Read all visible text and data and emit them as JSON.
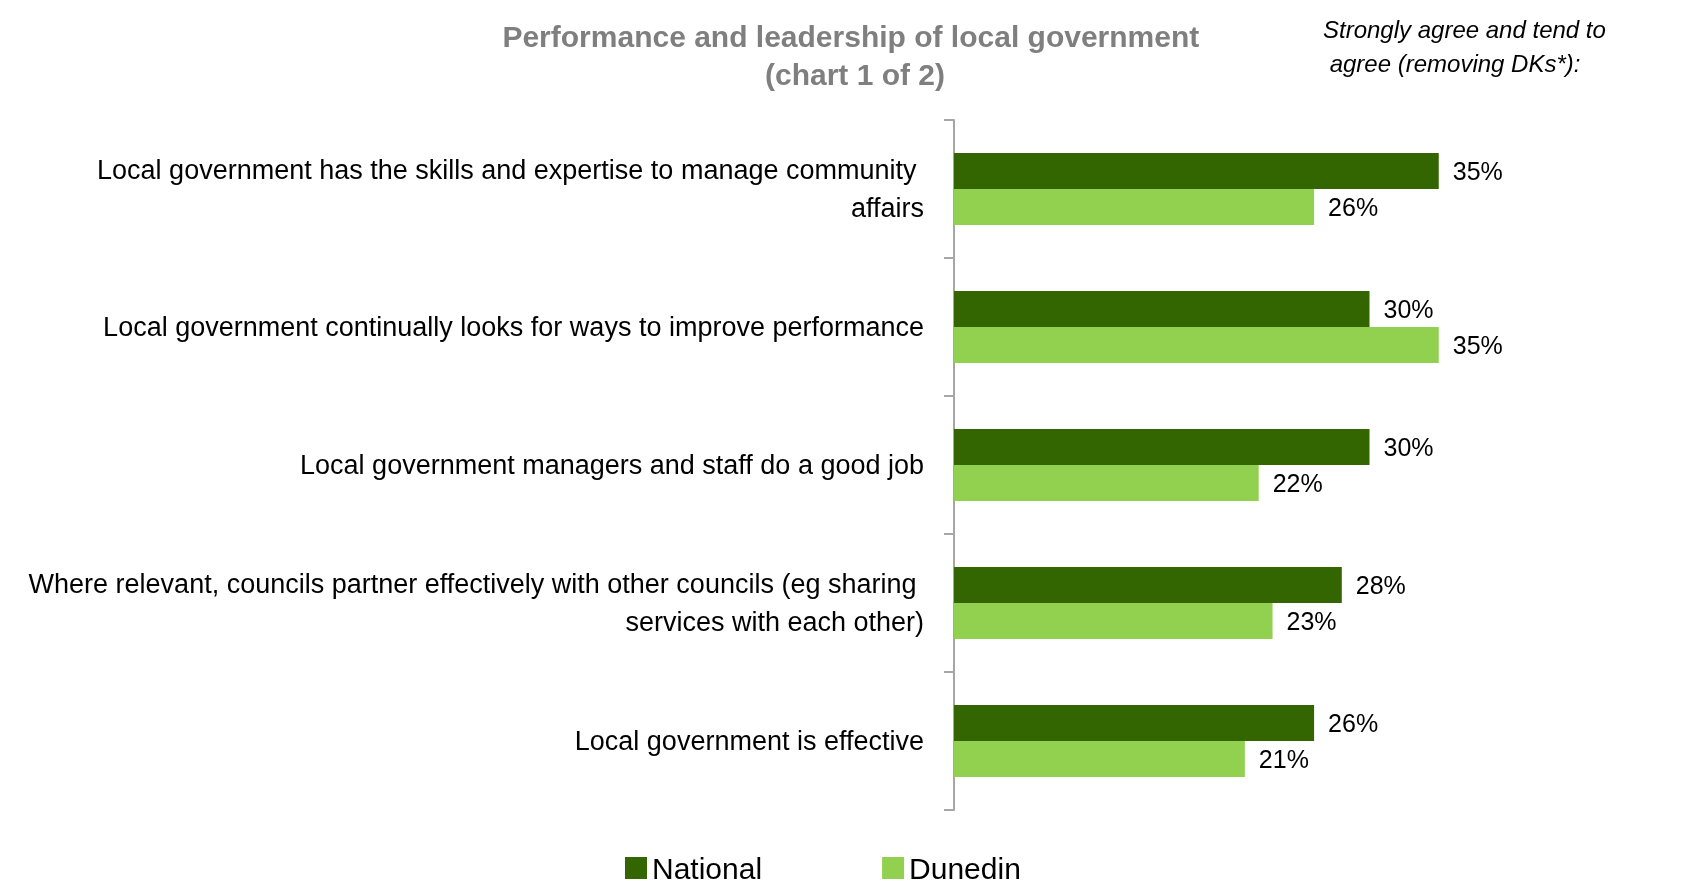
{
  "chart_data": {
    "type": "bar",
    "orientation": "horizontal",
    "title": "Performance and leadership of local government (chart 1 of 2)",
    "annotations": [
      "Strongly agree and tend to agree (removing DKs*):"
    ],
    "categories": [
      "Local government has the skills and expertise to manage community affairs",
      "Local government continually looks for ways to improve performance",
      "Local government managers and staff do a good job",
      "Where relevant, councils partner effectively with other councils (eg sharing services with each other)",
      "Local government is effective"
    ],
    "series": [
      {
        "name": "National",
        "color": "#336600",
        "values": [
          35,
          30,
          30,
          28,
          26
        ],
        "value_labels": [
          "35%",
          "30%",
          "30%",
          "28%",
          "26%"
        ]
      },
      {
        "name": "Dunedin",
        "color": "#92d050",
        "values": [
          26,
          35,
          22,
          23,
          21
        ],
        "value_labels": [
          "26%",
          "35%",
          "22%",
          "23%",
          "21%"
        ]
      }
    ],
    "legend": "bottom"
  }
}
